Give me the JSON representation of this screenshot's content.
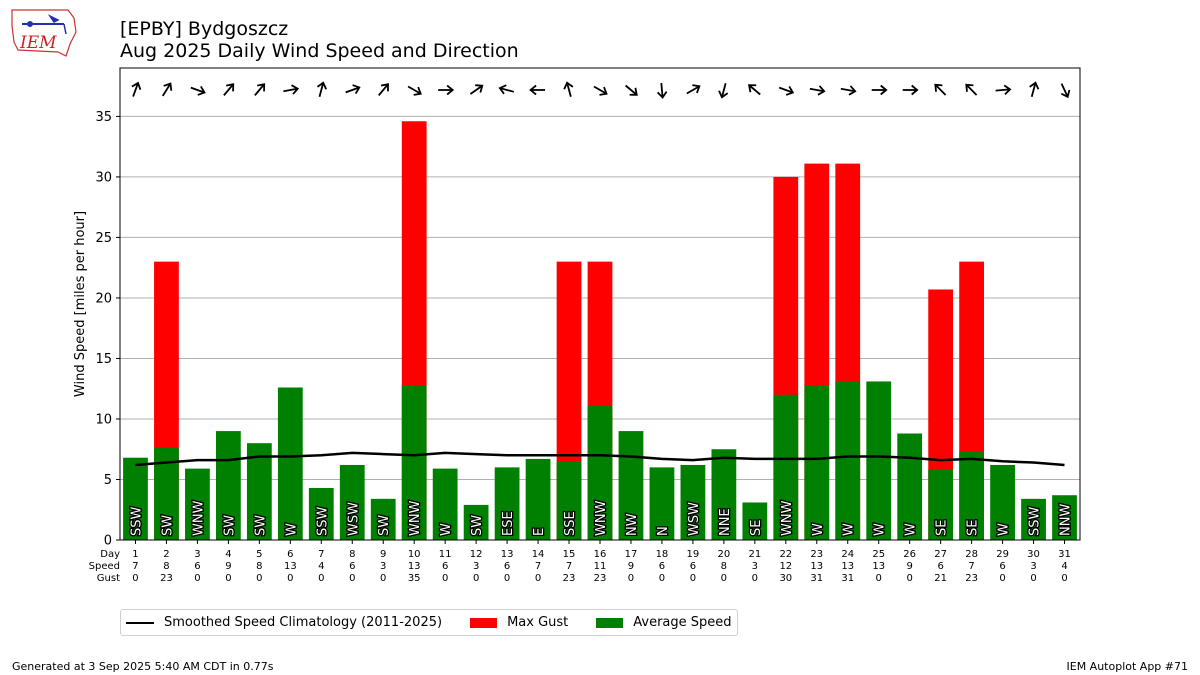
{
  "title": {
    "line1": "[EPBY] Bydgoszcz",
    "line2": "Aug 2025 Daily Wind Speed and Direction"
  },
  "logo": {
    "text": "IEM"
  },
  "footer": {
    "left": "Generated at 3 Sep 2025 5:40 AM CDT in 0.77s",
    "right": "IEM Autoplot App #71"
  },
  "row_labels": [
    "Day",
    "Speed",
    "Gust"
  ],
  "colors": {
    "avg": "#008000",
    "gust": "#ff0000",
    "clim": "#000000",
    "grid": "#b0b0b0"
  },
  "chart_data": {
    "type": "bar",
    "ylabel": "Wind Speed [miles per hour]",
    "ylim": [
      0,
      39
    ],
    "yticks": [
      0,
      5,
      10,
      15,
      20,
      25,
      30,
      35
    ],
    "grid": true,
    "legend_position": "bottom",
    "legend": [
      "Smoothed Speed Climatology (2011-2025)",
      "Max Gust",
      "Average Speed"
    ],
    "days": [
      "1",
      "2",
      "3",
      "4",
      "5",
      "6",
      "7",
      "8",
      "9",
      "10",
      "11",
      "12",
      "13",
      "14",
      "15",
      "16",
      "17",
      "18",
      "19",
      "20",
      "21",
      "22",
      "23",
      "24",
      "25",
      "26",
      "27",
      "28",
      "29",
      "30",
      "31"
    ],
    "speed_labels": [
      "7",
      "8",
      "6",
      "9",
      "8",
      "13",
      "4",
      "6",
      "3",
      "13",
      "6",
      "3",
      "6",
      "7",
      "7",
      "11",
      "9",
      "6",
      "6",
      "8",
      "3",
      "12",
      "13",
      "13",
      "13",
      "9",
      "6",
      "7",
      "6",
      "3",
      "4"
    ],
    "gust_labels": [
      "0",
      "23",
      "0",
      "0",
      "0",
      "0",
      "0",
      "0",
      "0",
      "35",
      "0",
      "0",
      "0",
      "0",
      "23",
      "23",
      "0",
      "0",
      "0",
      "0",
      "0",
      "30",
      "31",
      "31",
      "0",
      "0",
      "21",
      "23",
      "0",
      "0",
      "0"
    ],
    "avg_speed": [
      6.8,
      7.6,
      5.9,
      9.0,
      8.0,
      12.6,
      4.3,
      6.2,
      3.4,
      12.8,
      5.9,
      2.9,
      6.0,
      6.7,
      6.5,
      11.1,
      9.0,
      6.0,
      6.2,
      7.5,
      3.1,
      12.0,
      12.8,
      13.1,
      13.1,
      8.8,
      5.8,
      7.3,
      6.2,
      3.4,
      3.7
    ],
    "max_gust": [
      0,
      23.0,
      0,
      0,
      0,
      0,
      0,
      0,
      0,
      34.6,
      0,
      0,
      0,
      0,
      23.0,
      23.0,
      0,
      0,
      0,
      0,
      0,
      30.0,
      31.1,
      31.1,
      0,
      0,
      20.7,
      23.0,
      0,
      0,
      0
    ],
    "climatology": [
      6.2,
      6.4,
      6.6,
      6.6,
      6.9,
      6.9,
      7.0,
      7.2,
      7.1,
      7.0,
      7.2,
      7.1,
      7.0,
      7.0,
      7.0,
      7.0,
      6.9,
      6.7,
      6.6,
      6.8,
      6.7,
      6.7,
      6.7,
      6.9,
      6.9,
      6.8,
      6.6,
      6.7,
      6.5,
      6.4,
      6.2
    ],
    "direction_labels": [
      "SSW",
      "SW",
      "WNW",
      "SW",
      "SW",
      "W",
      "SSW",
      "WSW",
      "SW",
      "WNW",
      "W",
      "SW",
      "ESE",
      "E",
      "SSE",
      "WNW",
      "NW",
      "N",
      "WSW",
      "NNE",
      "SE",
      "WNW",
      "W",
      "W",
      "W",
      "W",
      "SE",
      "SE",
      "W",
      "SSW",
      "NNW"
    ],
    "arrow_angles_deg": [
      -70,
      -58,
      20,
      -50,
      -50,
      -10,
      -75,
      -20,
      -50,
      30,
      0,
      -35,
      195,
      180,
      255,
      30,
      40,
      85,
      -30,
      105,
      220,
      20,
      10,
      10,
      0,
      0,
      225,
      225,
      -5,
      -75,
      65
    ]
  }
}
